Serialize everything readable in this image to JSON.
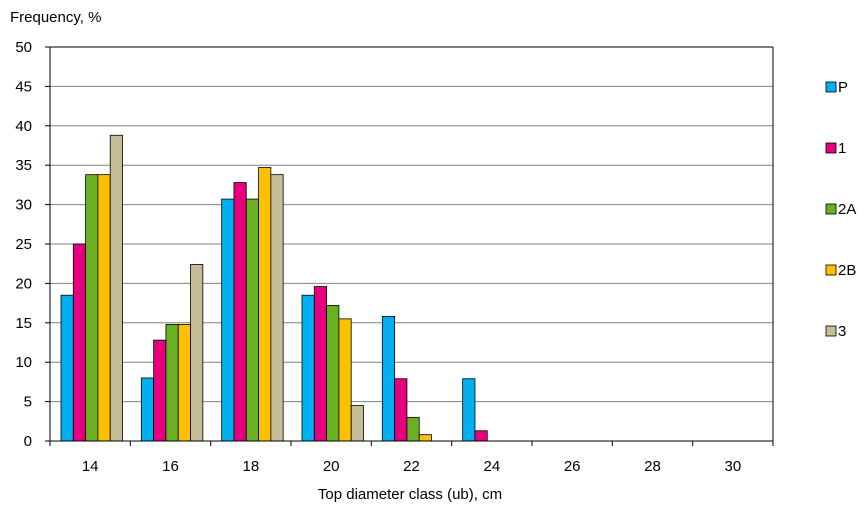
{
  "chart_data": {
    "type": "bar",
    "ylabel": "Frequency, %",
    "xlabel": "Top diameter class (ub), cm",
    "ylim": [
      0,
      50
    ],
    "yticks": [
      0,
      5,
      10,
      15,
      20,
      25,
      30,
      35,
      40,
      45,
      50
    ],
    "categories": [
      "14",
      "16",
      "18",
      "20",
      "22",
      "24",
      "26",
      "28",
      "30"
    ],
    "grid": "horizontal",
    "legend_position": "right",
    "series": [
      {
        "name": "P",
        "color": "#00B0F0",
        "values": [
          18.5,
          8.0,
          30.7,
          18.5,
          15.8,
          7.9,
          0,
          0,
          0
        ]
      },
      {
        "name": "1",
        "color": "#E6007E",
        "values": [
          25.0,
          12.8,
          32.8,
          19.6,
          7.9,
          1.3,
          0,
          0,
          0
        ]
      },
      {
        "name": "2A",
        "color": "#6AB023",
        "values": [
          33.8,
          14.8,
          30.7,
          17.2,
          3.0,
          0,
          0,
          0,
          0
        ]
      },
      {
        "name": "2B",
        "color": "#FFC000",
        "values": [
          33.8,
          14.8,
          34.7,
          15.5,
          0.8,
          0,
          0,
          0,
          0
        ]
      },
      {
        "name": "3",
        "color": "#C4BD97",
        "values": [
          38.8,
          22.4,
          33.8,
          4.5,
          0,
          0,
          0,
          0,
          0
        ]
      }
    ]
  }
}
